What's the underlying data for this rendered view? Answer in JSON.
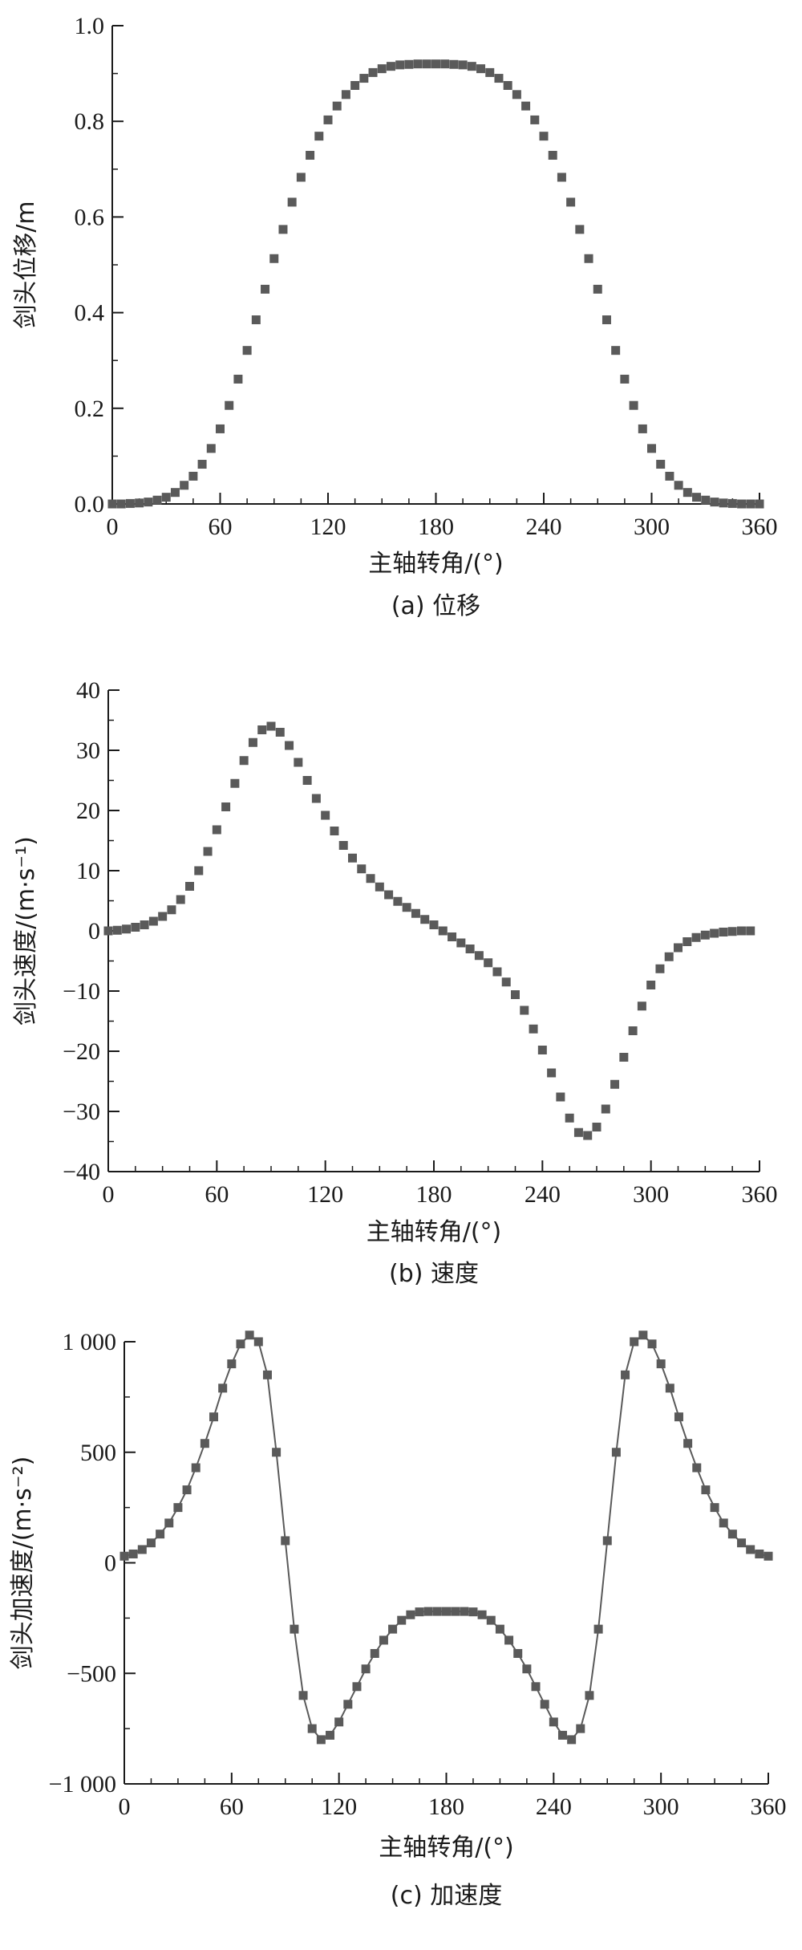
{
  "colors": {
    "marker": "#5a5a5a",
    "axis": "#1a1a1a",
    "line": "#5a5a5a"
  },
  "chart_data": [
    {
      "type": "scatter",
      "caption": "(a) 位移",
      "xlabel": "主轴转角/(°)",
      "ylabel": "剑头位移/m",
      "xlim": [
        0,
        360
      ],
      "ylim": [
        0,
        1.0
      ],
      "xticks": [
        "0",
        "60",
        "120",
        "180",
        "240",
        "300",
        "360"
      ],
      "yticks": [
        "0.0",
        "0.2",
        "0.4",
        "0.6",
        "0.8",
        "1.0"
      ],
      "grid": false,
      "connect": false,
      "series": [
        {
          "x": [
            0,
            5,
            10,
            15,
            20,
            25,
            30,
            35,
            40,
            45,
            50,
            55,
            60,
            65,
            70,
            75,
            80,
            85,
            90,
            95,
            100,
            105,
            110,
            115,
            120,
            125,
            130,
            135,
            140,
            145,
            150,
            155,
            160,
            165,
            170,
            175,
            180,
            185,
            190,
            195,
            200,
            205,
            210,
            215,
            220,
            225,
            230,
            235,
            240,
            245,
            250,
            255,
            260,
            265,
            270,
            275,
            280,
            285,
            290,
            295,
            300,
            305,
            310,
            315,
            320,
            325,
            330,
            335,
            340,
            345,
            350,
            355,
            360
          ],
          "y": [
            0.0,
            0.0,
            0.001,
            0.002,
            0.004,
            0.008,
            0.014,
            0.024,
            0.039,
            0.058,
            0.083,
            0.116,
            0.157,
            0.206,
            0.261,
            0.321,
            0.385,
            0.449,
            0.513,
            0.574,
            0.631,
            0.683,
            0.729,
            0.769,
            0.803,
            0.832,
            0.856,
            0.875,
            0.89,
            0.902,
            0.91,
            0.915,
            0.918,
            0.919,
            0.92,
            0.92,
            0.92,
            0.92,
            0.919,
            0.918,
            0.915,
            0.91,
            0.902,
            0.89,
            0.875,
            0.856,
            0.832,
            0.803,
            0.769,
            0.729,
            0.683,
            0.631,
            0.574,
            0.513,
            0.449,
            0.385,
            0.321,
            0.261,
            0.206,
            0.157,
            0.116,
            0.083,
            0.058,
            0.039,
            0.024,
            0.014,
            0.008,
            0.004,
            0.002,
            0.001,
            0.0,
            0.0,
            0.0
          ]
        }
      ]
    },
    {
      "type": "scatter",
      "caption": "(b) 速度",
      "xlabel": "主轴转角/(°)",
      "ylabel": "剑头速度/(m·s⁻¹)",
      "xlim": [
        0,
        360
      ],
      "ylim": [
        -40,
        40
      ],
      "xticks": [
        "0",
        "60",
        "120",
        "180",
        "240",
        "300",
        "360"
      ],
      "yticks": [
        "−40",
        "−30",
        "−20",
        "−10",
        "0",
        "10",
        "20",
        "30",
        "40"
      ],
      "grid": false,
      "connect": false,
      "series": [
        {
          "x": [
            0,
            5,
            10,
            15,
            20,
            25,
            30,
            35,
            40,
            45,
            50,
            55,
            60,
            65,
            70,
            75,
            80,
            85,
            90,
            95,
            100,
            105,
            110,
            115,
            120,
            125,
            130,
            135,
            140,
            145,
            150,
            155,
            160,
            165,
            170,
            175,
            180,
            185,
            190,
            195,
            200,
            205,
            210,
            215,
            220,
            225,
            230,
            235,
            240,
            245,
            250,
            255,
            260,
            265,
            270,
            275,
            280,
            285,
            290,
            295,
            300,
            305,
            310,
            315,
            320,
            325,
            330,
            335,
            340,
            345,
            350,
            355
          ],
          "y": [
            0.0,
            0.1,
            0.3,
            0.6,
            1.0,
            1.6,
            2.4,
            3.5,
            5.2,
            7.4,
            10.0,
            13.2,
            16.8,
            20.6,
            24.5,
            28.3,
            31.3,
            33.4,
            34.0,
            33.0,
            30.8,
            28.0,
            25.0,
            22.0,
            19.2,
            16.6,
            14.2,
            12.1,
            10.3,
            8.7,
            7.3,
            6.0,
            4.9,
            3.9,
            2.9,
            1.9,
            1.0,
            0.0,
            -1.0,
            -2.0,
            -3.0,
            -4.1,
            -5.3,
            -6.8,
            -8.5,
            -10.6,
            -13.2,
            -16.3,
            -19.8,
            -23.6,
            -27.6,
            -31.1,
            -33.5,
            -34.0,
            -32.6,
            -29.6,
            -25.5,
            -21.0,
            -16.6,
            -12.5,
            -9.0,
            -6.3,
            -4.3,
            -2.8,
            -1.8,
            -1.1,
            -0.7,
            -0.4,
            -0.2,
            -0.1,
            0.0,
            0.0
          ]
        }
      ]
    },
    {
      "type": "line",
      "caption": "(c) 加速度",
      "xlabel": "主轴转角/(°)",
      "ylabel": "剑头加速度/(m·s⁻²)",
      "xlim": [
        0,
        360
      ],
      "ylim": [
        -1000,
        1000
      ],
      "xticks": [
        "0",
        "60",
        "120",
        "180",
        "240",
        "300",
        "360"
      ],
      "yticks": [
        "−1 000",
        "−500",
        "0",
        "500",
        "1 000"
      ],
      "grid": false,
      "connect": true,
      "series": [
        {
          "x": [
            0,
            5,
            10,
            15,
            20,
            25,
            30,
            35,
            40,
            45,
            50,
            55,
            60,
            65,
            70,
            75,
            80,
            85,
            90,
            95,
            100,
            105,
            110,
            115,
            120,
            125,
            130,
            135,
            140,
            145,
            150,
            155,
            160,
            165,
            170,
            175,
            180,
            185,
            190,
            195,
            200,
            205,
            210,
            215,
            220,
            225,
            230,
            235,
            240,
            245,
            250,
            255,
            260,
            265,
            270,
            275,
            280,
            285,
            290,
            295,
            300,
            305,
            310,
            315,
            320,
            325,
            330,
            335,
            340,
            345,
            350,
            355,
            360
          ],
          "y": [
            30,
            40,
            60,
            90,
            130,
            180,
            250,
            330,
            430,
            540,
            660,
            790,
            900,
            990,
            1030,
            1000,
            850,
            500,
            100,
            -300,
            -600,
            -750,
            -800,
            -780,
            -720,
            -640,
            -560,
            -480,
            -410,
            -350,
            -300,
            -260,
            -235,
            -222,
            -220,
            -220,
            -220,
            -220,
            -220,
            -222,
            -235,
            -260,
            -300,
            -350,
            -410,
            -480,
            -560,
            -640,
            -720,
            -780,
            -800,
            -750,
            -600,
            -300,
            100,
            500,
            850,
            1000,
            1030,
            990,
            900,
            790,
            660,
            540,
            430,
            330,
            250,
            180,
            130,
            90,
            60,
            40,
            30
          ]
        }
      ]
    }
  ]
}
